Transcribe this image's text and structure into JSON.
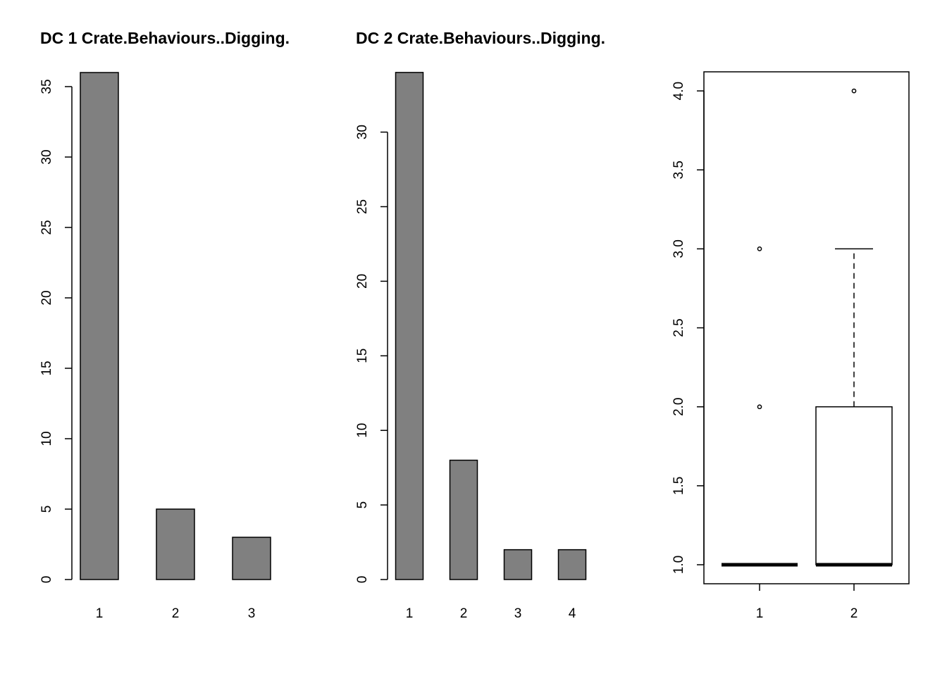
{
  "chart_data": [
    {
      "type": "bar",
      "title": "DC 1 Crate.Behaviours..Digging.",
      "categories": [
        "1",
        "2",
        "3"
      ],
      "values": [
        36,
        5,
        3
      ],
      "ylim": [
        0,
        36
      ],
      "yticks": [
        "0",
        "5",
        "10",
        "15",
        "20",
        "25",
        "30",
        "35"
      ],
      "bar_color": "#808080",
      "grid": false
    },
    {
      "type": "bar",
      "title": "DC 2 Crate.Behaviours..Digging.",
      "categories": [
        "1",
        "2",
        "3",
        "4"
      ],
      "values": [
        34,
        8,
        2,
        2
      ],
      "ylim": [
        0,
        34
      ],
      "yticks": [
        "0",
        "5",
        "10",
        "15",
        "20",
        "25",
        "30"
      ],
      "bar_color": "#808080",
      "grid": false
    },
    {
      "type": "boxplot",
      "title": "",
      "categories": [
        "1",
        "2"
      ],
      "boxes": [
        {
          "name": "1",
          "min": 1,
          "q1": 1,
          "median": 1,
          "q3": 1,
          "max": 1,
          "outliers": [
            2,
            3
          ]
        },
        {
          "name": "2",
          "min": 1,
          "q1": 1,
          "median": 1,
          "q3": 2,
          "max": 3,
          "outliers": [
            4
          ]
        }
      ],
      "ylim": [
        0.88,
        4.12
      ],
      "yticks": [
        "1.0",
        "1.5",
        "2.0",
        "2.5",
        "3.0",
        "3.5",
        "4.0"
      ],
      "grid": false
    }
  ]
}
